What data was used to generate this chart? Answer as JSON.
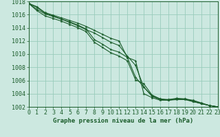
{
  "background_color": "#cce8e0",
  "grid_color": "#99ccbb",
  "line_color": "#1a5c2a",
  "xlabel": "Graphe pression niveau de la mer (hPa)",
  "xmin": 0,
  "xmax": 23,
  "ymin": 1002,
  "ymax": 1018,
  "yticks": [
    1002,
    1004,
    1006,
    1008,
    1010,
    1012,
    1014,
    1016,
    1018
  ],
  "xticks": [
    0,
    1,
    2,
    3,
    4,
    5,
    6,
    7,
    8,
    9,
    10,
    11,
    12,
    13,
    14,
    15,
    16,
    17,
    18,
    19,
    20,
    21,
    22,
    23
  ],
  "series": [
    [
      1017.7,
      1017.2,
      1016.3,
      1015.9,
      1015.5,
      1015.1,
      1014.7,
      1014.2,
      1013.6,
      1013.0,
      1012.4,
      1012.0,
      1009.5,
      1009.0,
      1004.0,
      1003.4,
      1003.0,
      1003.0,
      1003.2,
      1003.2,
      1002.8,
      1002.5,
      1002.2,
      1002.0
    ],
    [
      1017.7,
      1017.1,
      1016.2,
      1015.8,
      1015.3,
      1014.8,
      1014.3,
      1013.7,
      1013.2,
      1012.5,
      1011.8,
      1011.3,
      1009.7,
      1008.3,
      1005.0,
      1003.6,
      1003.1,
      1003.1,
      1003.3,
      1003.2,
      1002.9,
      1002.5,
      1002.2,
      1002.0
    ],
    [
      1017.7,
      1016.8,
      1016.1,
      1015.7,
      1015.3,
      1014.9,
      1014.4,
      1013.8,
      1012.2,
      1011.5,
      1010.7,
      1010.3,
      1009.5,
      1006.5,
      1005.0,
      1003.7,
      1003.2,
      1003.1,
      1003.2,
      1003.2,
      1003.0,
      1002.6,
      1002.2,
      1002.0
    ],
    [
      1017.7,
      1016.6,
      1015.8,
      1015.4,
      1015.0,
      1014.5,
      1014.0,
      1013.4,
      1011.8,
      1011.0,
      1010.2,
      1009.7,
      1009.0,
      1006.1,
      1005.5,
      1003.8,
      1003.2,
      1003.0,
      1003.1,
      1003.1,
      1002.8,
      1002.5,
      1002.2,
      1002.0
    ]
  ],
  "figsize": [
    3.2,
    2.0
  ],
  "dpi": 100,
  "tick_fontsize": 6,
  "label_fontsize": 6.5
}
